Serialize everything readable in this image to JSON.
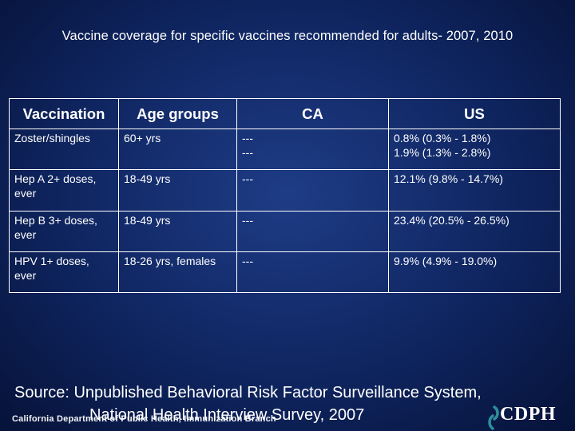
{
  "title": "Vaccine coverage for specific vaccines recommended for adults- 2007, 2010",
  "table": {
    "headers": [
      "Vaccination",
      "Age groups",
      "CA",
      "US"
    ],
    "rows": [
      {
        "vaccination": "Zoster/shingles",
        "age": "60+ yrs",
        "ca": [
          "---",
          "---"
        ],
        "us": [
          "0.8% (0.3% - 1.8%)",
          "1.9% (1.3% - 2.8%)"
        ]
      },
      {
        "vaccination": "Hep A 2+ doses, ever",
        "age": "18-49 yrs",
        "ca": [
          "---"
        ],
        "us": [
          "12.1% (9.8% - 14.7%)"
        ]
      },
      {
        "vaccination": "Hep B 3+ doses, ever",
        "age": "18-49 yrs",
        "ca": [
          "---"
        ],
        "us": [
          "23.4% (20.5% - 26.5%)"
        ]
      },
      {
        "vaccination": "HPV 1+ doses, ever",
        "age": "18-26 yrs, females",
        "ca": [
          "---"
        ],
        "us": [
          "9.9% (4.9% - 19.0%)"
        ]
      }
    ]
  },
  "source": {
    "line1": "Source: Unpublished Behavioral Risk Factor Surveillance System,",
    "line2": "National Health Interview Survey, 2007"
  },
  "footer": {
    "department": "California Department of Public Health, Immunization Branch",
    "logo_text": "CDPH"
  },
  "colors": {
    "background": "#0f2560",
    "text": "#ffffff",
    "logo_accent": "#2f8f9d"
  }
}
